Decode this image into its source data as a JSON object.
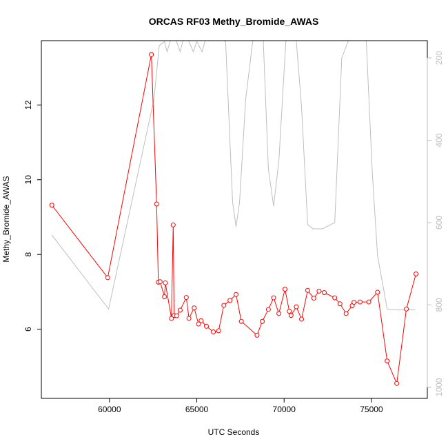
{
  "chart_data": {
    "type": "line",
    "title": "ORCAS RF03 Methy_Bromide_AWAS",
    "xlabel": "UTC Seconds",
    "ylabel": "Methy_Bromide_AWAS",
    "xlim": [
      56100,
      78200
    ],
    "ylim": [
      4.15,
      13.72
    ],
    "y2lim": [
      1027,
      158
    ],
    "y2_reversed": true,
    "x_ticks": [
      60000,
      65000,
      70000,
      75000
    ],
    "y_ticks": [
      6,
      8,
      10,
      12
    ],
    "y2_ticks": [
      200,
      400,
      600,
      800,
      1000
    ],
    "grid": false,
    "legend": "none",
    "colors": {
      "primary": "#ff0000",
      "secondary": "#bebebe",
      "frame": "#000000"
    },
    "series": [
      {
        "axis": "left",
        "style": "line+points",
        "color": "#ff0000",
        "x": [
          56700,
          59900,
          62400,
          62700,
          62800,
          62900,
          63150,
          63200,
          63550,
          63650,
          63700,
          63850,
          64050,
          64400,
          64550,
          64850,
          65100,
          65250,
          65550,
          65950,
          66250,
          66550,
          66900,
          67250,
          67550,
          68450,
          68750,
          69100,
          69400,
          69700,
          70050,
          70300,
          70400,
          70700,
          71000,
          71350,
          71700,
          72000,
          72300,
          72900,
          73200,
          73550,
          73900,
          74000,
          74350,
          74850,
          75350,
          75900,
          76450,
          77000,
          77550
        ],
        "y": [
          9.32,
          7.38,
          13.35,
          9.35,
          7.26,
          7.27,
          6.87,
          7.24,
          6.29,
          8.79,
          6.37,
          6.36,
          6.51,
          6.85,
          6.29,
          6.57,
          6.14,
          6.23,
          6.08,
          5.93,
          5.96,
          6.64,
          6.77,
          6.93,
          6.21,
          5.84,
          6.21,
          6.53,
          6.84,
          6.42,
          7.07,
          6.48,
          6.37,
          6.6,
          6.27,
          7.04,
          6.83,
          7.02,
          6.98,
          6.84,
          6.68,
          6.42,
          6.63,
          6.72,
          6.73,
          6.73,
          6.99,
          5.15,
          4.55,
          6.54,
          7.48
        ]
      },
      {
        "axis": "right",
        "style": "line",
        "color": "#bebebe",
        "x": [
          56700,
          59950,
          62550,
          62850,
          63150,
          63300,
          63600,
          63800,
          64050,
          64250,
          64400,
          64800,
          65000,
          65300,
          65500,
          65800,
          66200,
          66650,
          67050,
          67250,
          67450,
          67800,
          68200,
          68550,
          68800,
          69100,
          69400,
          69700,
          70100,
          70400,
          70700,
          71000,
          71350,
          71650,
          72200,
          72900,
          73300,
          73800,
          74300,
          74700,
          75050,
          75350,
          75900,
          76450,
          77000,
          77500
        ],
        "y": [
          630,
          810,
          300,
          170,
          160,
          185,
          140,
          155,
          185,
          150,
          145,
          185,
          160,
          185,
          155,
          140,
          150,
          160,
          550,
          610,
          550,
          300,
          160,
          140,
          150,
          470,
          560,
          450,
          160,
          140,
          160,
          320,
          605,
          615,
          615,
          600,
          200,
          145,
          150,
          155,
          480,
          680,
          810,
          812,
          812,
          812
        ]
      }
    ]
  }
}
